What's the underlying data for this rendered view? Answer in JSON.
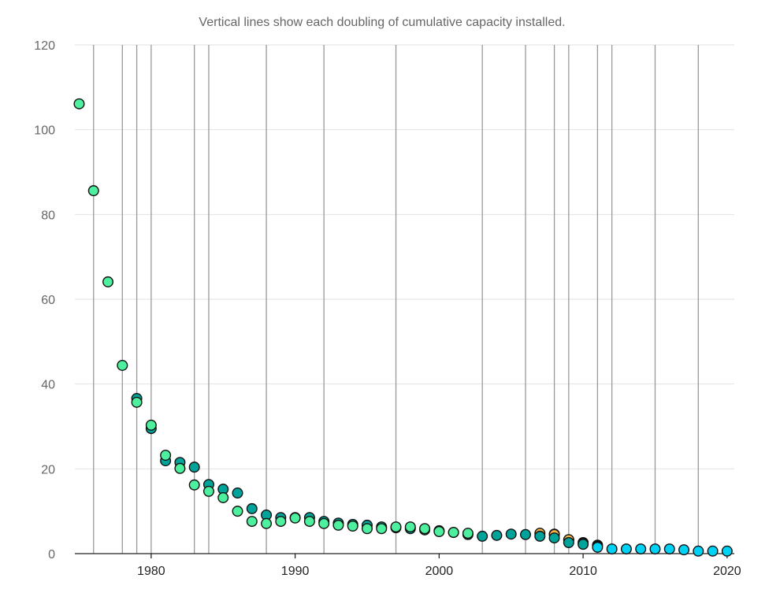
{
  "chart_data": {
    "type": "scatter",
    "title": "",
    "subtitle": "Vertical lines show each doubling of cumulative capacity installed.",
    "xlabel": "",
    "ylabel": "",
    "xlim": [
      1974.7,
      2020.5
    ],
    "ylim": [
      0,
      120
    ],
    "yticks": [
      "0",
      "20",
      "40",
      "60",
      "80",
      "100",
      "120"
    ],
    "xticks": [
      "1980",
      "1990",
      "2000",
      "2010",
      "2020"
    ],
    "grid": "horizontal",
    "doubling_years": [
      1976,
      1978,
      1979,
      1980,
      1983,
      1984,
      1988,
      1992,
      1997,
      2003,
      2006,
      2008,
      2009,
      2011,
      2012,
      2015,
      2018
    ],
    "series": [
      {
        "name": "series-black",
        "color": "#111111",
        "x": [
          2008,
          2009,
          2010,
          2011
        ],
        "y": [
          4.6,
          3.2,
          2.6,
          2.0
        ]
      },
      {
        "name": "series-gold",
        "color": "#f2b247",
        "x": [
          2007,
          2008,
          2009
        ],
        "y": [
          4.8,
          4.5,
          3.3
        ]
      },
      {
        "name": "series-teal",
        "color": "#00a39a",
        "x": [
          1979,
          1980,
          1981,
          1982,
          1983,
          1984,
          1985,
          1986,
          1987,
          1988,
          1989,
          1990,
          1991,
          1992,
          1993,
          1994,
          1995,
          1996,
          1997,
          1998,
          1999,
          2000,
          2001,
          2002,
          2003,
          2004,
          2005,
          2006,
          2007,
          2008,
          2009,
          2010
        ],
        "y": [
          36.6,
          29.5,
          21.9,
          21.5,
          20.4,
          16.3,
          15.2,
          14.3,
          10.6,
          9.1,
          8.5,
          8.5,
          8.5,
          7.6,
          7.2,
          6.9,
          6.7,
          6.3,
          6.1,
          5.9,
          5.6,
          5.4,
          5.0,
          4.5,
          4.1,
          4.3,
          4.6,
          4.5,
          4.1,
          3.7,
          2.6,
          2.2
        ]
      },
      {
        "name": "series-green",
        "color": "#4cf09e",
        "x": [
          1975,
          1976,
          1977,
          1978,
          1979,
          1980,
          1981,
          1982,
          1983,
          1984,
          1985,
          1986,
          1987,
          1988,
          1989,
          1990,
          1991,
          1992,
          1993,
          1994,
          1995,
          1996,
          1997,
          1998,
          1999,
          2000,
          2001,
          2002
        ],
        "y": [
          106.1,
          85.6,
          64.1,
          44.4,
          35.7,
          30.3,
          23.2,
          20.1,
          16.2,
          14.7,
          13.2,
          10.0,
          7.6,
          7.1,
          7.6,
          8.4,
          7.6,
          7.1,
          6.7,
          6.5,
          5.9,
          5.9,
          6.3,
          6.3,
          5.9,
          5.2,
          5.0,
          4.8
        ]
      },
      {
        "name": "series-cyan",
        "color": "#00d2f5",
        "x": [
          2011,
          2012,
          2013,
          2014,
          2015,
          2016,
          2017,
          2018,
          2019,
          2020
        ],
        "y": [
          1.5,
          1.1,
          1.1,
          1.1,
          1.1,
          1.1,
          0.9,
          0.6,
          0.6,
          0.6
        ]
      }
    ]
  }
}
